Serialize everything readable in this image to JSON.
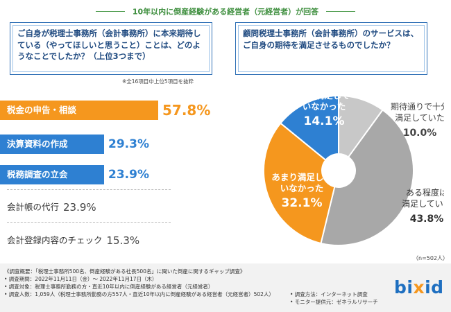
{
  "header": {
    "title": "10年以内に倒産経験がある経営者（元経営者）が回答"
  },
  "questions": {
    "left": "ご自身が税理士事務所（会計事務所）に本来期待している（やってほしいと思うこと）ことは、どのようなことでしたか？（上位3つまで）",
    "right": "顧問税理士事務所（会計事務所）のサービスは、ご自身の期待を満足させるものでしたか？"
  },
  "note": "※全16項目中上位5項目を抜粋",
  "chart_data": [
    {
      "type": "bar",
      "title": "税理士事務所に本来期待していること（上位3つまで）",
      "categories": [
        "税金の申告・相談",
        "決算資料の作成",
        "税務調査の立会",
        "会計帳の代行",
        "会計登録内容のチェック"
      ],
      "values": [
        57.8,
        29.3,
        23.9,
        23.9,
        15.3
      ],
      "value_labels": [
        "57.8%",
        "29.3%",
        "23.9%",
        "23.9%",
        "15.3%"
      ],
      "unit": "%"
    },
    {
      "type": "pie",
      "title": "顧問税理士事務所のサービスは期待を満足させるものでしたか",
      "categories": [
        "期待通りで十分満足していた",
        "ある程度は満足していた",
        "あまり満足していなかった",
        "全く満足していなかった"
      ],
      "values": [
        10.0,
        43.8,
        32.1,
        14.1
      ],
      "value_labels": [
        "10.0%",
        "43.8%",
        "32.1%",
        "14.1%"
      ],
      "slice_text": [
        "期待通りで十分\n満足していた",
        "ある程度は\n満足していた",
        "あまり満足して\nいなかった",
        "全く満足して\nいなかった"
      ],
      "colors": [
        "#c8c8c8",
        "#a8a8a8",
        "#f5971e",
        "#2e80d2"
      ],
      "n_label": "（n=502人）"
    }
  ],
  "footer": {
    "title": "《調査概要：「税理士事務所500名、倒産経験がある社長500名」に聞いた倒産に関するギャップ調査》",
    "period": "• 調査期間：2022年11月11日（金）〜 2022年11月17日（木）",
    "target": "• 調査対象：税理士事務所勤務の方・直近10年以内に倒産経験がある経営者（元経営者）",
    "count": "• 調査人数：1,059人（税理士事務所勤務の方557人・直近10年以内に倒産経験がある経営者（元経営者）502人）",
    "method": "• 調査方法：インターネット調査",
    "provider": "• モニター提供元：ゼネラルリサーチ"
  },
  "logo": {
    "text_main": "bi",
    "text_x": "x",
    "text_end": "id"
  }
}
